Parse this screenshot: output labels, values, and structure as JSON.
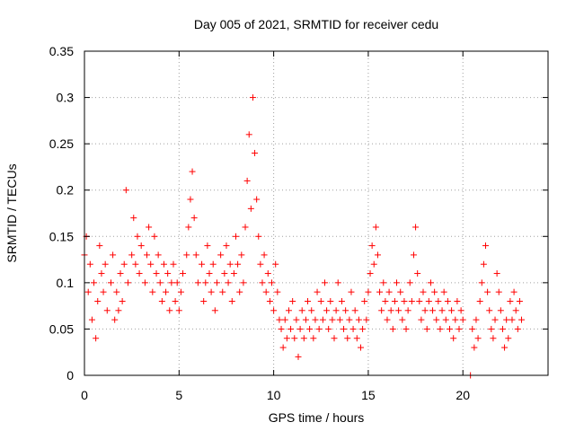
{
  "chart_data": {
    "type": "scatter",
    "title": "Day 005 of 2021, SRMTID for receiver cedu",
    "xlabel": "GPS time / hours",
    "ylabel": "SRMTID / TECUs",
    "xlim": [
      0,
      24.5
    ],
    "ylim": [
      0,
      0.35
    ],
    "xticks": [
      0,
      5,
      10,
      15,
      20
    ],
    "xtick_labels": [
      "0",
      "5",
      "10",
      "15",
      "20"
    ],
    "yticks": [
      0,
      0.05,
      0.1,
      0.15,
      0.2,
      0.25,
      0.3,
      0.35
    ],
    "ytick_labels": [
      "0",
      "0.05",
      "0.1",
      "0.15",
      "0.2",
      "0.25",
      "0.3",
      "0.35"
    ],
    "grid": true,
    "marker": "+",
    "series_color": "#ff0000",
    "series": [
      {
        "name": "SRMTID",
        "points": [
          [
            0.0,
            0.13
          ],
          [
            0.1,
            0.15
          ],
          [
            0.2,
            0.09
          ],
          [
            0.3,
            0.12
          ],
          [
            0.4,
            0.06
          ],
          [
            0.5,
            0.1
          ],
          [
            0.6,
            0.04
          ],
          [
            0.7,
            0.08
          ],
          [
            0.8,
            0.14
          ],
          [
            0.9,
            0.11
          ],
          [
            1.0,
            0.09
          ],
          [
            1.1,
            0.12
          ],
          [
            1.2,
            0.07
          ],
          [
            1.4,
            0.1
          ],
          [
            1.5,
            0.13
          ],
          [
            1.6,
            0.06
          ],
          [
            1.7,
            0.09
          ],
          [
            1.8,
            0.07
          ],
          [
            1.9,
            0.11
          ],
          [
            2.0,
            0.08
          ],
          [
            2.2,
            0.2
          ],
          [
            2.1,
            0.12
          ],
          [
            2.3,
            0.1
          ],
          [
            2.5,
            0.13
          ],
          [
            2.6,
            0.17
          ],
          [
            2.7,
            0.12
          ],
          [
            2.8,
            0.15
          ],
          [
            2.9,
            0.11
          ],
          [
            3.0,
            0.14
          ],
          [
            3.2,
            0.1
          ],
          [
            3.3,
            0.13
          ],
          [
            3.4,
            0.16
          ],
          [
            3.5,
            0.12
          ],
          [
            3.6,
            0.09
          ],
          [
            3.7,
            0.15
          ],
          [
            3.8,
            0.11
          ],
          [
            3.9,
            0.13
          ],
          [
            4.0,
            0.1
          ],
          [
            4.1,
            0.08
          ],
          [
            4.2,
            0.12
          ],
          [
            4.3,
            0.09
          ],
          [
            4.4,
            0.11
          ],
          [
            4.5,
            0.07
          ],
          [
            4.6,
            0.1
          ],
          [
            4.7,
            0.12
          ],
          [
            4.8,
            0.08
          ],
          [
            4.9,
            0.1
          ],
          [
            5.0,
            0.07
          ],
          [
            5.1,
            0.09
          ],
          [
            5.2,
            0.11
          ],
          [
            5.4,
            0.13
          ],
          [
            5.5,
            0.16
          ],
          [
            5.6,
            0.19
          ],
          [
            5.7,
            0.22
          ],
          [
            5.8,
            0.17
          ],
          [
            5.9,
            0.13
          ],
          [
            6.0,
            0.1
          ],
          [
            6.2,
            0.12
          ],
          [
            6.3,
            0.08
          ],
          [
            6.4,
            0.1
          ],
          [
            6.5,
            0.14
          ],
          [
            6.6,
            0.11
          ],
          [
            6.7,
            0.09
          ],
          [
            6.8,
            0.12
          ],
          [
            6.9,
            0.07
          ],
          [
            7.0,
            0.1
          ],
          [
            7.2,
            0.13
          ],
          [
            7.3,
            0.09
          ],
          [
            7.4,
            0.11
          ],
          [
            7.5,
            0.14
          ],
          [
            7.6,
            0.1
          ],
          [
            7.7,
            0.12
          ],
          [
            7.8,
            0.08
          ],
          [
            7.9,
            0.11
          ],
          [
            8.0,
            0.15
          ],
          [
            8.1,
            0.12
          ],
          [
            8.2,
            0.09
          ],
          [
            8.3,
            0.13
          ],
          [
            8.4,
            0.1
          ],
          [
            8.5,
            0.16
          ],
          [
            8.6,
            0.21
          ],
          [
            8.7,
            0.26
          ],
          [
            8.8,
            0.18
          ],
          [
            8.9,
            0.3
          ],
          [
            9.0,
            0.24
          ],
          [
            9.1,
            0.19
          ],
          [
            9.2,
            0.15
          ],
          [
            9.3,
            0.12
          ],
          [
            9.4,
            0.1
          ],
          [
            9.5,
            0.13
          ],
          [
            9.6,
            0.09
          ],
          [
            9.7,
            0.11
          ],
          [
            9.8,
            0.08
          ],
          [
            9.9,
            0.1
          ],
          [
            10.0,
            0.07
          ],
          [
            10.1,
            0.12
          ],
          [
            10.2,
            0.09
          ],
          [
            10.3,
            0.06
          ],
          [
            10.4,
            0.05
          ],
          [
            10.5,
            0.03
          ],
          [
            10.6,
            0.06
          ],
          [
            10.7,
            0.04
          ],
          [
            10.8,
            0.07
          ],
          [
            10.9,
            0.05
          ],
          [
            11.0,
            0.08
          ],
          [
            11.1,
            0.04
          ],
          [
            11.2,
            0.06
          ],
          [
            11.3,
            0.02
          ],
          [
            11.4,
            0.05
          ],
          [
            11.5,
            0.07
          ],
          [
            11.6,
            0.04
          ],
          [
            11.7,
            0.06
          ],
          [
            11.8,
            0.08
          ],
          [
            11.9,
            0.05
          ],
          [
            12.0,
            0.07
          ],
          [
            12.1,
            0.04
          ],
          [
            12.2,
            0.06
          ],
          [
            12.3,
            0.09
          ],
          [
            12.4,
            0.05
          ],
          [
            12.5,
            0.08
          ],
          [
            12.6,
            0.06
          ],
          [
            12.7,
            0.1
          ],
          [
            12.8,
            0.07
          ],
          [
            12.9,
            0.05
          ],
          [
            13.0,
            0.08
          ],
          [
            13.1,
            0.06
          ],
          [
            13.2,
            0.04
          ],
          [
            13.3,
            0.07
          ],
          [
            13.4,
            0.1
          ],
          [
            13.5,
            0.06
          ],
          [
            13.6,
            0.08
          ],
          [
            13.7,
            0.05
          ],
          [
            13.8,
            0.07
          ],
          [
            13.9,
            0.04
          ],
          [
            14.0,
            0.06
          ],
          [
            14.1,
            0.09
          ],
          [
            14.2,
            0.05
          ],
          [
            14.3,
            0.07
          ],
          [
            14.4,
            0.04
          ],
          [
            14.5,
            0.06
          ],
          [
            14.6,
            0.03
          ],
          [
            14.7,
            0.05
          ],
          [
            14.8,
            0.08
          ],
          [
            14.9,
            0.06
          ],
          [
            15.0,
            0.09
          ],
          [
            15.1,
            0.11
          ],
          [
            15.2,
            0.14
          ],
          [
            15.3,
            0.12
          ],
          [
            15.4,
            0.16
          ],
          [
            15.5,
            0.13
          ],
          [
            15.6,
            0.09
          ],
          [
            15.7,
            0.07
          ],
          [
            15.8,
            0.1
          ],
          [
            15.9,
            0.08
          ],
          [
            16.0,
            0.06
          ],
          [
            16.1,
            0.09
          ],
          [
            16.2,
            0.07
          ],
          [
            16.3,
            0.05
          ],
          [
            16.4,
            0.08
          ],
          [
            16.5,
            0.1
          ],
          [
            16.6,
            0.07
          ],
          [
            16.7,
            0.09
          ],
          [
            16.8,
            0.06
          ],
          [
            16.9,
            0.08
          ],
          [
            17.0,
            0.05
          ],
          [
            17.1,
            0.07
          ],
          [
            17.2,
            0.1
          ],
          [
            17.3,
            0.08
          ],
          [
            17.4,
            0.13
          ],
          [
            17.5,
            0.16
          ],
          [
            17.6,
            0.11
          ],
          [
            17.7,
            0.08
          ],
          [
            17.8,
            0.06
          ],
          [
            17.9,
            0.09
          ],
          [
            18.0,
            0.07
          ],
          [
            18.1,
            0.05
          ],
          [
            18.2,
            0.08
          ],
          [
            18.3,
            0.1
          ],
          [
            18.4,
            0.07
          ],
          [
            18.5,
            0.09
          ],
          [
            18.6,
            0.06
          ],
          [
            18.7,
            0.08
          ],
          [
            18.8,
            0.05
          ],
          [
            18.9,
            0.07
          ],
          [
            19.0,
            0.09
          ],
          [
            19.1,
            0.06
          ],
          [
            19.2,
            0.08
          ],
          [
            19.3,
            0.05
          ],
          [
            19.4,
            0.07
          ],
          [
            19.5,
            0.04
          ],
          [
            19.6,
            0.06
          ],
          [
            19.7,
            0.08
          ],
          [
            19.8,
            0.05
          ],
          [
            19.9,
            0.07
          ],
          [
            20.0,
            0.06
          ],
          [
            20.4,
            0.0
          ],
          [
            20.5,
            0.05
          ],
          [
            20.6,
            0.03
          ],
          [
            20.7,
            0.06
          ],
          [
            20.8,
            0.04
          ],
          [
            20.9,
            0.08
          ],
          [
            21.0,
            0.1
          ],
          [
            21.1,
            0.12
          ],
          [
            21.2,
            0.14
          ],
          [
            21.3,
            0.09
          ],
          [
            21.4,
            0.07
          ],
          [
            21.5,
            0.05
          ],
          [
            21.6,
            0.04
          ],
          [
            21.7,
            0.06
          ],
          [
            21.8,
            0.11
          ],
          [
            21.9,
            0.09
          ],
          [
            22.0,
            0.07
          ],
          [
            22.1,
            0.05
          ],
          [
            22.2,
            0.03
          ],
          [
            22.3,
            0.06
          ],
          [
            22.4,
            0.04
          ],
          [
            22.5,
            0.08
          ],
          [
            22.6,
            0.06
          ],
          [
            22.7,
            0.09
          ],
          [
            22.8,
            0.07
          ],
          [
            22.9,
            0.05
          ],
          [
            23.0,
            0.08
          ],
          [
            23.1,
            0.06
          ]
        ]
      }
    ]
  }
}
